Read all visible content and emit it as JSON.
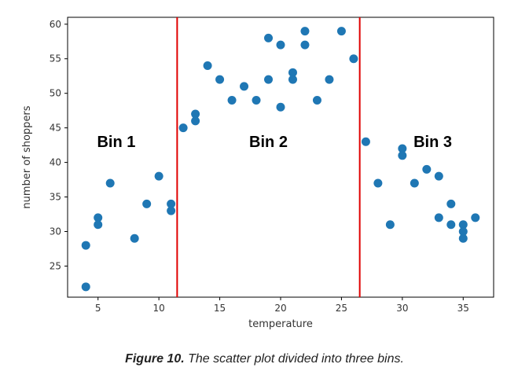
{
  "chart_data": {
    "type": "scatter",
    "xlabel": "temperature",
    "ylabel": "number of shoppers",
    "xlim": [
      2.5,
      37.5
    ],
    "ylim": [
      20.5,
      61
    ],
    "xticks": [
      5,
      10,
      15,
      20,
      25,
      30,
      35
    ],
    "yticks": [
      25,
      30,
      35,
      40,
      45,
      50,
      55,
      60
    ],
    "grid": false,
    "point_color": "#1f77b4",
    "divider_color": "#e00000",
    "dividers": [
      11.5,
      26.5
    ],
    "bins": [
      {
        "label": "Bin 1",
        "x": 6.5,
        "y": 43
      },
      {
        "label": "Bin 2",
        "x": 19,
        "y": 43
      },
      {
        "label": "Bin 3",
        "x": 32.5,
        "y": 43
      }
    ],
    "points": [
      {
        "x": 4,
        "y": 28
      },
      {
        "x": 4,
        "y": 22
      },
      {
        "x": 5,
        "y": 32
      },
      {
        "x": 5,
        "y": 31
      },
      {
        "x": 6,
        "y": 37
      },
      {
        "x": 8,
        "y": 29
      },
      {
        "x": 9,
        "y": 34
      },
      {
        "x": 10,
        "y": 38
      },
      {
        "x": 11,
        "y": 34
      },
      {
        "x": 11,
        "y": 33
      },
      {
        "x": 12,
        "y": 45
      },
      {
        "x": 13,
        "y": 47
      },
      {
        "x": 13,
        "y": 46
      },
      {
        "x": 14,
        "y": 54
      },
      {
        "x": 15,
        "y": 52
      },
      {
        "x": 16,
        "y": 49
      },
      {
        "x": 17,
        "y": 51
      },
      {
        "x": 18,
        "y": 49
      },
      {
        "x": 19,
        "y": 58
      },
      {
        "x": 19,
        "y": 52
      },
      {
        "x": 20,
        "y": 57
      },
      {
        "x": 20,
        "y": 48
      },
      {
        "x": 21,
        "y": 53
      },
      {
        "x": 21,
        "y": 52
      },
      {
        "x": 22,
        "y": 59
      },
      {
        "x": 22,
        "y": 57
      },
      {
        "x": 23,
        "y": 49
      },
      {
        "x": 24,
        "y": 52
      },
      {
        "x": 25,
        "y": 59
      },
      {
        "x": 26,
        "y": 55
      },
      {
        "x": 27,
        "y": 43
      },
      {
        "x": 28,
        "y": 37
      },
      {
        "x": 29,
        "y": 31
      },
      {
        "x": 30,
        "y": 42
      },
      {
        "x": 30,
        "y": 41
      },
      {
        "x": 31,
        "y": 37
      },
      {
        "x": 32,
        "y": 39
      },
      {
        "x": 33,
        "y": 38
      },
      {
        "x": 33,
        "y": 32
      },
      {
        "x": 34,
        "y": 34
      },
      {
        "x": 34,
        "y": 31
      },
      {
        "x": 35,
        "y": 31
      },
      {
        "x": 35,
        "y": 30
      },
      {
        "x": 35,
        "y": 29
      },
      {
        "x": 36,
        "y": 32
      }
    ]
  },
  "caption": {
    "figure_label": "Figure 10.",
    "text": " The scatter plot divided into three bins."
  }
}
